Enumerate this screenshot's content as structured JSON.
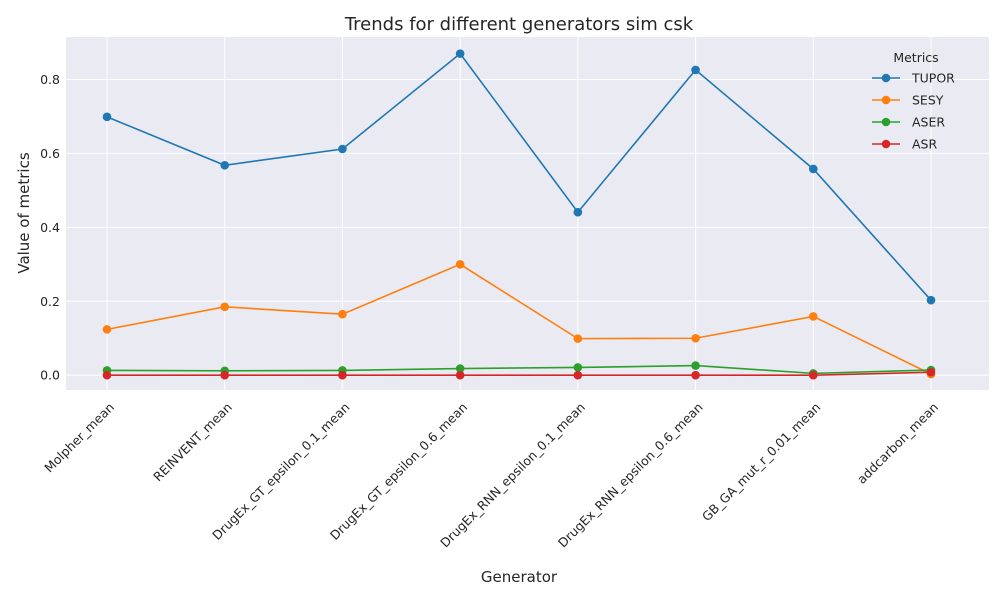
{
  "chart_data": {
    "type": "line",
    "title": "Trends for different generators sim csk",
    "xlabel": "Generator",
    "ylabel": "Value of metrics",
    "categories": [
      "Molpher_mean",
      "REINVENT_mean",
      "DrugEx_GT_epsilon_0.1_mean",
      "DrugEx_GT_epsilon_0.6_mean",
      "DrugEx_RNN_epsilon_0.1_mean",
      "DrugEx_RNN_epsilon_0.6_mean",
      "GB_GA_mut_r_0.01_mean",
      "addcarbon_mean"
    ],
    "ylim": [
      -0.04,
      0.915
    ],
    "yticks": [
      0.0,
      0.2,
      0.4,
      0.6,
      0.8
    ],
    "ytick_labels": [
      "0.0",
      "0.2",
      "0.4",
      "0.6",
      "0.8"
    ],
    "grid": true,
    "legend": {
      "title": "Metrics",
      "position": "top-right"
    },
    "series": [
      {
        "name": "TUPOR",
        "color": "#1f77b4",
        "values": [
          0.699,
          0.568,
          0.612,
          0.87,
          0.441,
          0.826,
          0.558,
          0.203
        ]
      },
      {
        "name": "SESY",
        "color": "#ff7f0e",
        "values": [
          0.124,
          0.185,
          0.165,
          0.3,
          0.099,
          0.1,
          0.159,
          0.003
        ]
      },
      {
        "name": "ASER",
        "color": "#2ca02c",
        "values": [
          0.013,
          0.012,
          0.013,
          0.018,
          0.021,
          0.026,
          0.005,
          0.014
        ]
      },
      {
        "name": "ASR",
        "color": "#d62728",
        "values": [
          0.0,
          0.0,
          0.0,
          0.0,
          0.0,
          0.0,
          0.0,
          0.008
        ]
      }
    ]
  }
}
